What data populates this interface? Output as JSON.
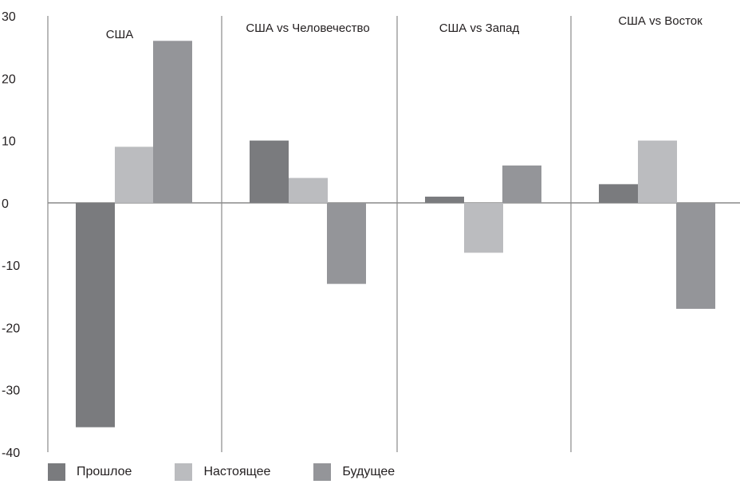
{
  "chart_data": {
    "type": "bar",
    "ylim": [
      -40,
      30
    ],
    "yticks": [
      30,
      20,
      10,
      0,
      -10,
      -20,
      -30,
      -40
    ],
    "panels": [
      "США",
      "США vs Человечество",
      "США vs Запад",
      "США vs Восток"
    ],
    "series": [
      {
        "name": "Прошлое",
        "color": "#7a7b7e",
        "values": [
          -36,
          10,
          1,
          3
        ]
      },
      {
        "name": "Настоящее",
        "color": "#bbbcbf",
        "values": [
          9,
          4,
          -8,
          10
        ]
      },
      {
        "name": "Будущее",
        "color": "#949599",
        "values": [
          26,
          -13,
          6,
          -17
        ]
      }
    ],
    "grid": false,
    "legend_position": "bottom"
  }
}
